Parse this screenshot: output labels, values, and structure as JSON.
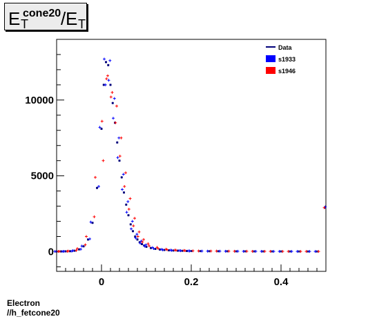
{
  "title": {
    "base": "E",
    "sub": "T",
    "sup": "cone20",
    "slash": "/",
    "base2": "E",
    "sub2": "T"
  },
  "footer": {
    "line1": "Electron",
    "line2": "//h_fetcone20"
  },
  "colors": {
    "data": "#00007a",
    "s1933": "#0000ff",
    "s1946": "#ff0000"
  },
  "chart_data": {
    "type": "scatter",
    "title": "",
    "xlabel": "",
    "ylabel": "",
    "xlim": [
      -0.1,
      0.5
    ],
    "ylim": [
      -1300,
      14000
    ],
    "xticks": [
      0,
      0.2,
      0.4
    ],
    "xtick_labels": [
      "0",
      "0.2",
      "0.4"
    ],
    "yticks": [
      0,
      5000,
      10000
    ],
    "ytick_labels": [
      "0",
      "5000",
      "10000"
    ],
    "legend_position": "top-right",
    "x": [
      -0.1,
      -0.09,
      -0.08,
      -0.07,
      -0.06,
      -0.05,
      -0.04,
      -0.03,
      -0.02,
      -0.01,
      0.0,
      0.005,
      0.01,
      0.015,
      0.02,
      0.025,
      0.03,
      0.035,
      0.04,
      0.045,
      0.05,
      0.055,
      0.06,
      0.065,
      0.07,
      0.075,
      0.08,
      0.085,
      0.09,
      0.095,
      0.1,
      0.11,
      0.12,
      0.13,
      0.14,
      0.15,
      0.16,
      0.17,
      0.18,
      0.19,
      0.2,
      0.22,
      0.24,
      0.26,
      0.28,
      0.3,
      0.32,
      0.34,
      0.36,
      0.38,
      0.4,
      0.42,
      0.44,
      0.46,
      0.48,
      0.5
    ],
    "series": [
      {
        "name": "Data",
        "values": [
          10,
          15,
          20,
          30,
          60,
          150,
          350,
          800,
          1900,
          4200,
          8100,
          11000,
          12500,
          12300,
          11000,
          9800,
          8500,
          7200,
          6000,
          4900,
          3900,
          3100,
          2400,
          1800,
          1350,
          1000,
          800,
          620,
          500,
          400,
          320,
          240,
          180,
          140,
          110,
          90,
          75,
          65,
          55,
          45,
          40,
          35,
          30,
          28,
          25,
          22,
          20,
          18,
          16,
          15,
          15,
          14,
          13,
          12,
          11,
          2900
        ]
      },
      {
        "name": "s1933",
        "values": [
          12,
          16,
          22,
          32,
          65,
          160,
          370,
          840,
          1950,
          4300,
          8200,
          11000,
          12700,
          12600,
          11300,
          10100,
          8800,
          7500,
          6200,
          5100,
          4100,
          3300,
          2600,
          2000,
          1500,
          1150,
          900,
          700,
          560,
          450,
          360,
          270,
          200,
          150,
          120,
          100,
          85,
          70,
          60,
          50,
          45,
          38,
          33,
          30,
          27,
          24,
          22,
          20,
          18,
          16,
          16,
          15,
          14,
          13,
          12,
          2950
        ]
      },
      {
        "name": "s1946",
        "values": [
          12,
          18,
          25,
          40,
          80,
          200,
          450,
          1000,
          2300,
          4900,
          6000,
          8600,
          11600,
          11400,
          10500,
          10200,
          9600,
          8500,
          7500,
          6300,
          5200,
          4300,
          3500,
          2800,
          2200,
          1700,
          1300,
          1000,
          800,
          640,
          520,
          380,
          280,
          210,
          160,
          130,
          105,
          90,
          75,
          65,
          55,
          45,
          40,
          35,
          30,
          27,
          24,
          22,
          20,
          18,
          17,
          16,
          15,
          14,
          13,
          2900
        ]
      }
    ]
  }
}
